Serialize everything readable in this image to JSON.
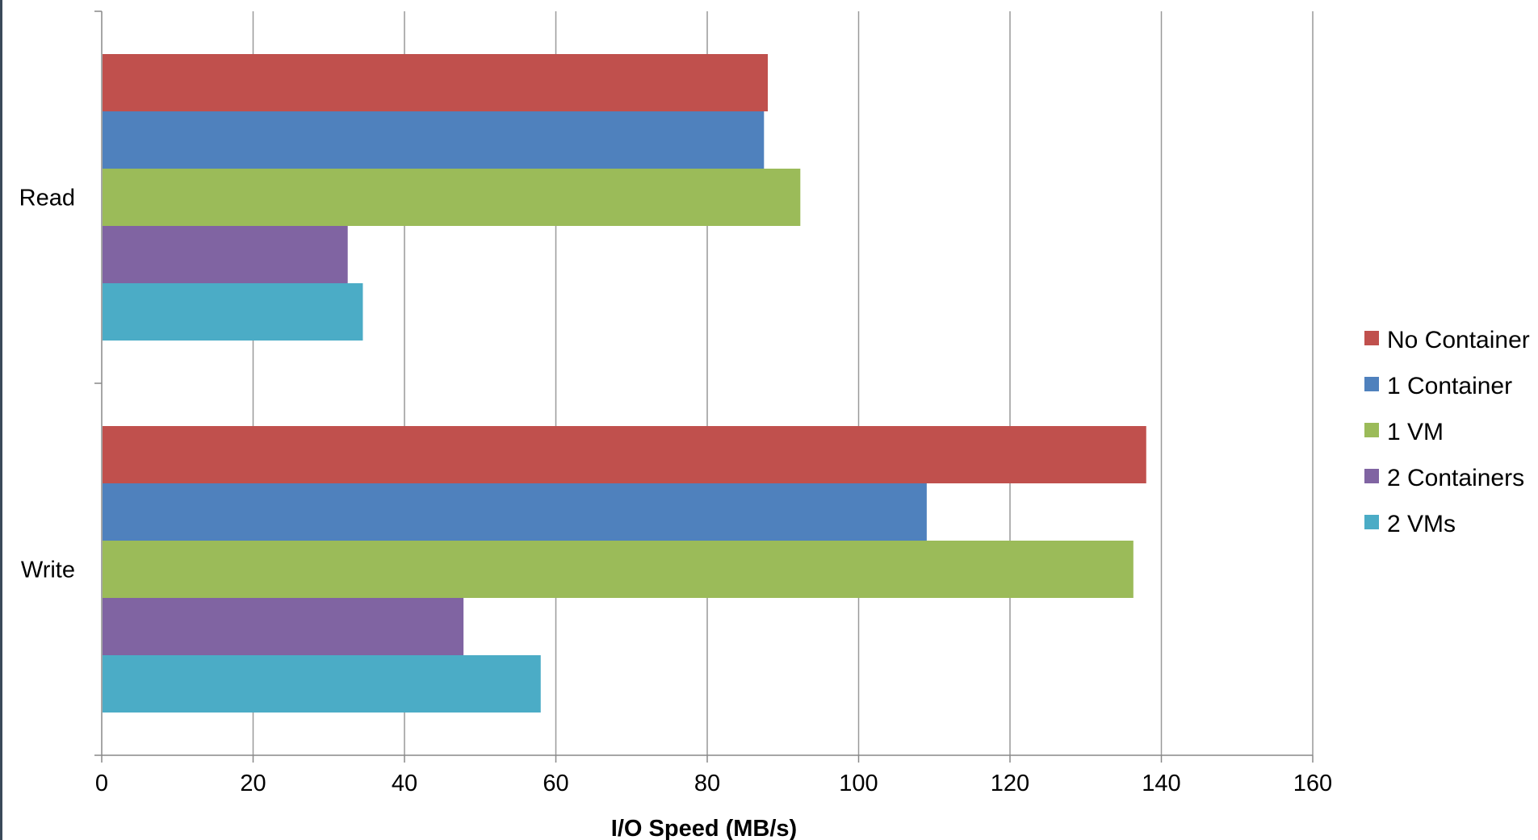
{
  "chart_data": {
    "type": "bar",
    "orientation": "horizontal",
    "categories": [
      "Read",
      "Write"
    ],
    "series": [
      {
        "name": "No Container",
        "color": "#C0504D",
        "values": [
          88,
          138
        ]
      },
      {
        "name": "1 Container",
        "color": "#4F81BD",
        "values": [
          87.5,
          109
        ]
      },
      {
        "name": "1 VM",
        "color": "#9BBB59",
        "values": [
          92.3,
          136.3
        ]
      },
      {
        "name": "2 Containers",
        "color": "#8064A2",
        "values": [
          32.5,
          47.8
        ]
      },
      {
        "name": "2 VMs",
        "color": "#4BACC6",
        "values": [
          34.5,
          58
        ]
      }
    ],
    "xlabel": "I/O Speed (MB/s)",
    "xlim": [
      0,
      160
    ],
    "xticks": [
      0,
      20,
      40,
      60,
      80,
      100,
      120,
      140,
      160
    ],
    "grid": true,
    "legend_position": "right"
  }
}
